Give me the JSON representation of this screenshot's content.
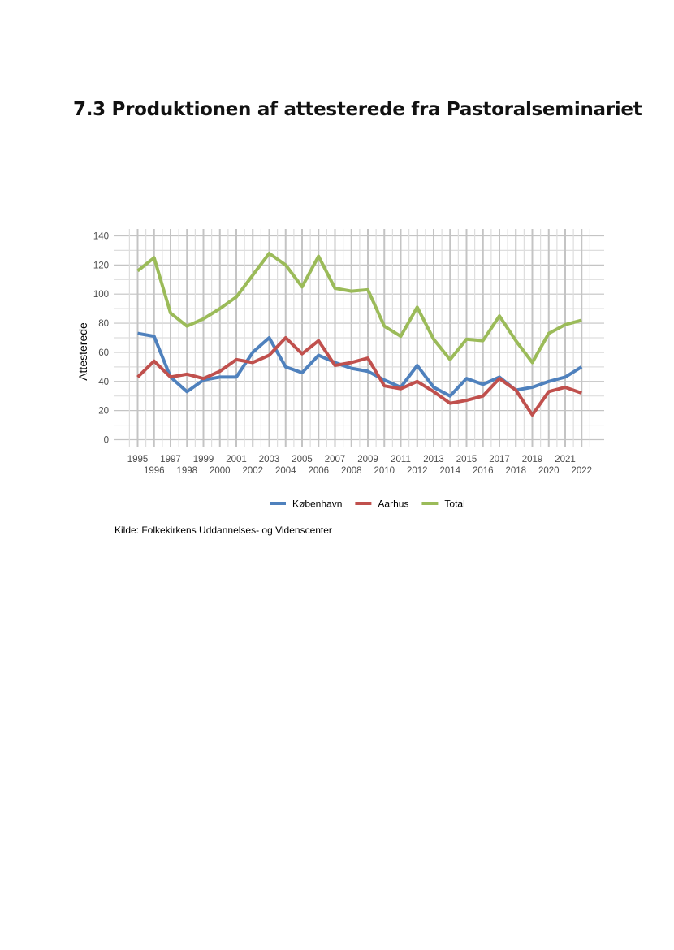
{
  "heading": "7.3 Produktionen af attesterede fra Pastoralseminariet",
  "source": "Kilde: Folkekirkens Uddannelses- og Videnscenter",
  "chart_data": {
    "type": "line",
    "title": "",
    "xlabel": "",
    "ylabel": "Attesterede",
    "x": [
      1995,
      1996,
      1997,
      1998,
      1999,
      2000,
      2001,
      2002,
      2003,
      2004,
      2005,
      2006,
      2007,
      2008,
      2009,
      2010,
      2011,
      2012,
      2013,
      2014,
      2015,
      2016,
      2017,
      2018,
      2019,
      2020,
      2021,
      2022
    ],
    "ylim": [
      0,
      140
    ],
    "yticks": [
      0,
      20,
      40,
      60,
      80,
      100,
      120,
      140
    ],
    "grid": true,
    "legend_position": "bottom",
    "series": [
      {
        "name": "København",
        "color": "#4f81bd",
        "values": [
          73,
          71,
          43,
          33,
          41,
          43,
          43,
          60,
          70,
          50,
          46,
          58,
          53,
          49,
          47,
          41,
          36,
          51,
          36,
          30,
          42,
          38,
          43,
          34,
          36,
          40,
          43,
          50
        ]
      },
      {
        "name": "Aarhus",
        "color": "#c0504d",
        "values": [
          43,
          54,
          43,
          45,
          42,
          47,
          55,
          53,
          58,
          70,
          59,
          68,
          51,
          53,
          56,
          37,
          35,
          40,
          33,
          25,
          27,
          30,
          42,
          34,
          17,
          33,
          36,
          32
        ]
      },
      {
        "name": "Total",
        "color": "#9bbb59",
        "values": [
          116,
          125,
          87,
          78,
          83,
          90,
          98,
          113,
          128,
          120,
          105,
          126,
          104,
          102,
          103,
          78,
          71,
          91,
          69,
          55,
          69,
          68,
          85,
          68,
          53,
          73,
          79,
          82
        ]
      }
    ]
  }
}
